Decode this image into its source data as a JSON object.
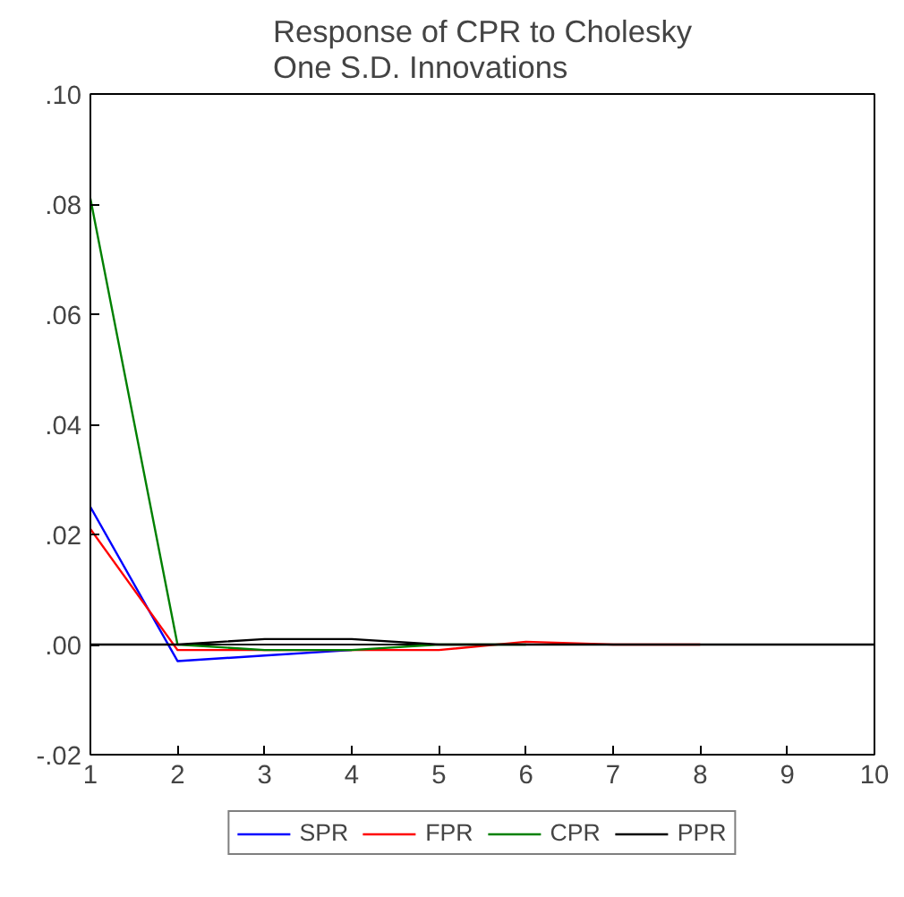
{
  "chart_data": {
    "type": "line",
    "title": "Response of CPR to Cholesky\nOne S.D. Innovations",
    "x": [
      1,
      2,
      3,
      4,
      5,
      6,
      7,
      8,
      9,
      10
    ],
    "series": [
      {
        "name": "SPR",
        "color": "#0000ff",
        "values": [
          0.025,
          -0.003,
          -0.002,
          -0.001,
          null,
          null,
          null,
          null,
          null,
          null
        ]
      },
      {
        "name": "FPR",
        "color": "#ff0000",
        "values": [
          0.021,
          -0.001,
          -0.001,
          -0.001,
          -0.001,
          0.0005,
          0.0,
          0.0,
          null,
          null
        ]
      },
      {
        "name": "CPR",
        "color": "#008000",
        "values": [
          0.081,
          0.0,
          -0.001,
          -0.001,
          0.0,
          0.0,
          null,
          null,
          null,
          null
        ]
      },
      {
        "name": "PPR",
        "color": "#000000",
        "values": [
          0.0,
          0.0,
          0.001,
          0.001,
          0.0,
          0.0,
          0.0,
          0.0,
          0.0,
          0.0
        ]
      }
    ],
    "xlim": [
      1,
      10
    ],
    "xticks": [
      1,
      2,
      3,
      4,
      5,
      6,
      7,
      8,
      9,
      10
    ],
    "ylim": [
      -0.02,
      0.1
    ],
    "yticks": [
      {
        "value": -0.02,
        "label": "-.02"
      },
      {
        "value": 0.0,
        "label": ".00"
      },
      {
        "value": 0.02,
        "label": ".02"
      },
      {
        "value": 0.04,
        "label": ".04"
      },
      {
        "value": 0.06,
        "label": ".06"
      },
      {
        "value": 0.08,
        "label": ".08"
      },
      {
        "value": 0.1,
        "label": ".10"
      }
    ],
    "ref_lines": [
      {
        "axis": "y",
        "value": 0,
        "color": "#000000"
      }
    ],
    "grid": false,
    "legend": "bottom"
  }
}
